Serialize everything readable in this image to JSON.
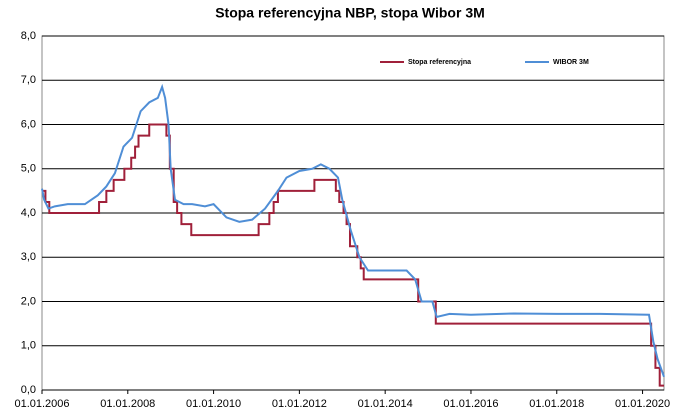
{
  "chart_data": {
    "type": "line",
    "title": "Stopa referencyjna NBP, stopa Wibor 3M",
    "xlim": [
      2006,
      2020.5
    ],
    "xticks": [
      {
        "value": 2006,
        "label": "01.01.2006"
      },
      {
        "value": 2008,
        "label": "01.01.2008"
      },
      {
        "value": 2010,
        "label": "01.01.2010"
      },
      {
        "value": 2012,
        "label": "01.01.2012"
      },
      {
        "value": 2014,
        "label": "01.01.2014"
      },
      {
        "value": 2016,
        "label": "01.01.2016"
      },
      {
        "value": 2018,
        "label": "01.01.2018"
      },
      {
        "value": 2020,
        "label": "01.01.2020"
      }
    ],
    "ylim": [
      0,
      8
    ],
    "yticks": [
      {
        "value": 0,
        "label": "0,0"
      },
      {
        "value": 1,
        "label": "1,0"
      },
      {
        "value": 2,
        "label": "2,0"
      },
      {
        "value": 3,
        "label": "3,0"
      },
      {
        "value": 4,
        "label": "4,0"
      },
      {
        "value": 5,
        "label": "5,0"
      },
      {
        "value": 6,
        "label": "6,0"
      },
      {
        "value": 7,
        "label": "7,0"
      },
      {
        "value": 8,
        "label": "8,0"
      }
    ],
    "grid": true,
    "legend": "top-right",
    "series": [
      {
        "name": "Stopa referencyjna",
        "color": "#a0203a",
        "step": "post",
        "x": [
          2006.0,
          2006.08,
          2006.17,
          2007.33,
          2007.5,
          2007.67,
          2007.92,
          2008.08,
          2008.17,
          2008.25,
          2008.5,
          2008.9,
          2008.98,
          2009.07,
          2009.15,
          2009.25,
          2009.48,
          2011.05,
          2011.3,
          2011.4,
          2011.5,
          2012.35,
          2012.85,
          2012.93,
          2013.03,
          2013.1,
          2013.18,
          2013.35,
          2013.43,
          2013.5,
          2014.77,
          2015.18,
          2020.2,
          2020.3,
          2020.4,
          2020.5
        ],
        "values": [
          4.5,
          4.25,
          4.0,
          4.25,
          4.5,
          4.75,
          5.0,
          5.25,
          5.5,
          5.75,
          6.0,
          5.75,
          5.0,
          4.25,
          4.0,
          3.75,
          3.5,
          3.75,
          4.0,
          4.25,
          4.5,
          4.75,
          4.5,
          4.25,
          4.0,
          3.75,
          3.25,
          3.0,
          2.75,
          2.5,
          2.0,
          1.5,
          1.0,
          0.5,
          0.1,
          0.1
        ]
      },
      {
        "name": "WIBOR 3M",
        "color": "#4f8ed6",
        "x": [
          2006.0,
          2006.05,
          2006.15,
          2006.3,
          2006.6,
          2007.0,
          2007.3,
          2007.5,
          2007.7,
          2007.9,
          2008.1,
          2008.3,
          2008.5,
          2008.7,
          2008.8,
          2008.87,
          2008.95,
          2009.0,
          2009.1,
          2009.3,
          2009.5,
          2009.8,
          2010.0,
          2010.3,
          2010.6,
          2010.9,
          2011.2,
          2011.5,
          2011.7,
          2012.0,
          2012.3,
          2012.5,
          2012.7,
          2012.9,
          2013.0,
          2013.2,
          2013.4,
          2013.6,
          2014.0,
          2014.5,
          2014.7,
          2014.85,
          2015.1,
          2015.2,
          2015.5,
          2016.0,
          2017.0,
          2018.0,
          2019.0,
          2020.15,
          2020.25,
          2020.35,
          2020.5
        ],
        "values": [
          4.55,
          4.3,
          4.1,
          4.15,
          4.2,
          4.2,
          4.4,
          4.6,
          4.9,
          5.5,
          5.7,
          6.3,
          6.5,
          6.6,
          6.85,
          6.6,
          6.0,
          5.0,
          4.3,
          4.2,
          4.2,
          4.15,
          4.2,
          3.9,
          3.8,
          3.85,
          4.1,
          4.5,
          4.8,
          4.95,
          5.0,
          5.1,
          5.0,
          4.8,
          4.3,
          3.6,
          3.0,
          2.7,
          2.7,
          2.7,
          2.5,
          2.0,
          2.0,
          1.65,
          1.72,
          1.7,
          1.73,
          1.72,
          1.72,
          1.7,
          1.1,
          0.7,
          0.3
        ]
      }
    ]
  }
}
